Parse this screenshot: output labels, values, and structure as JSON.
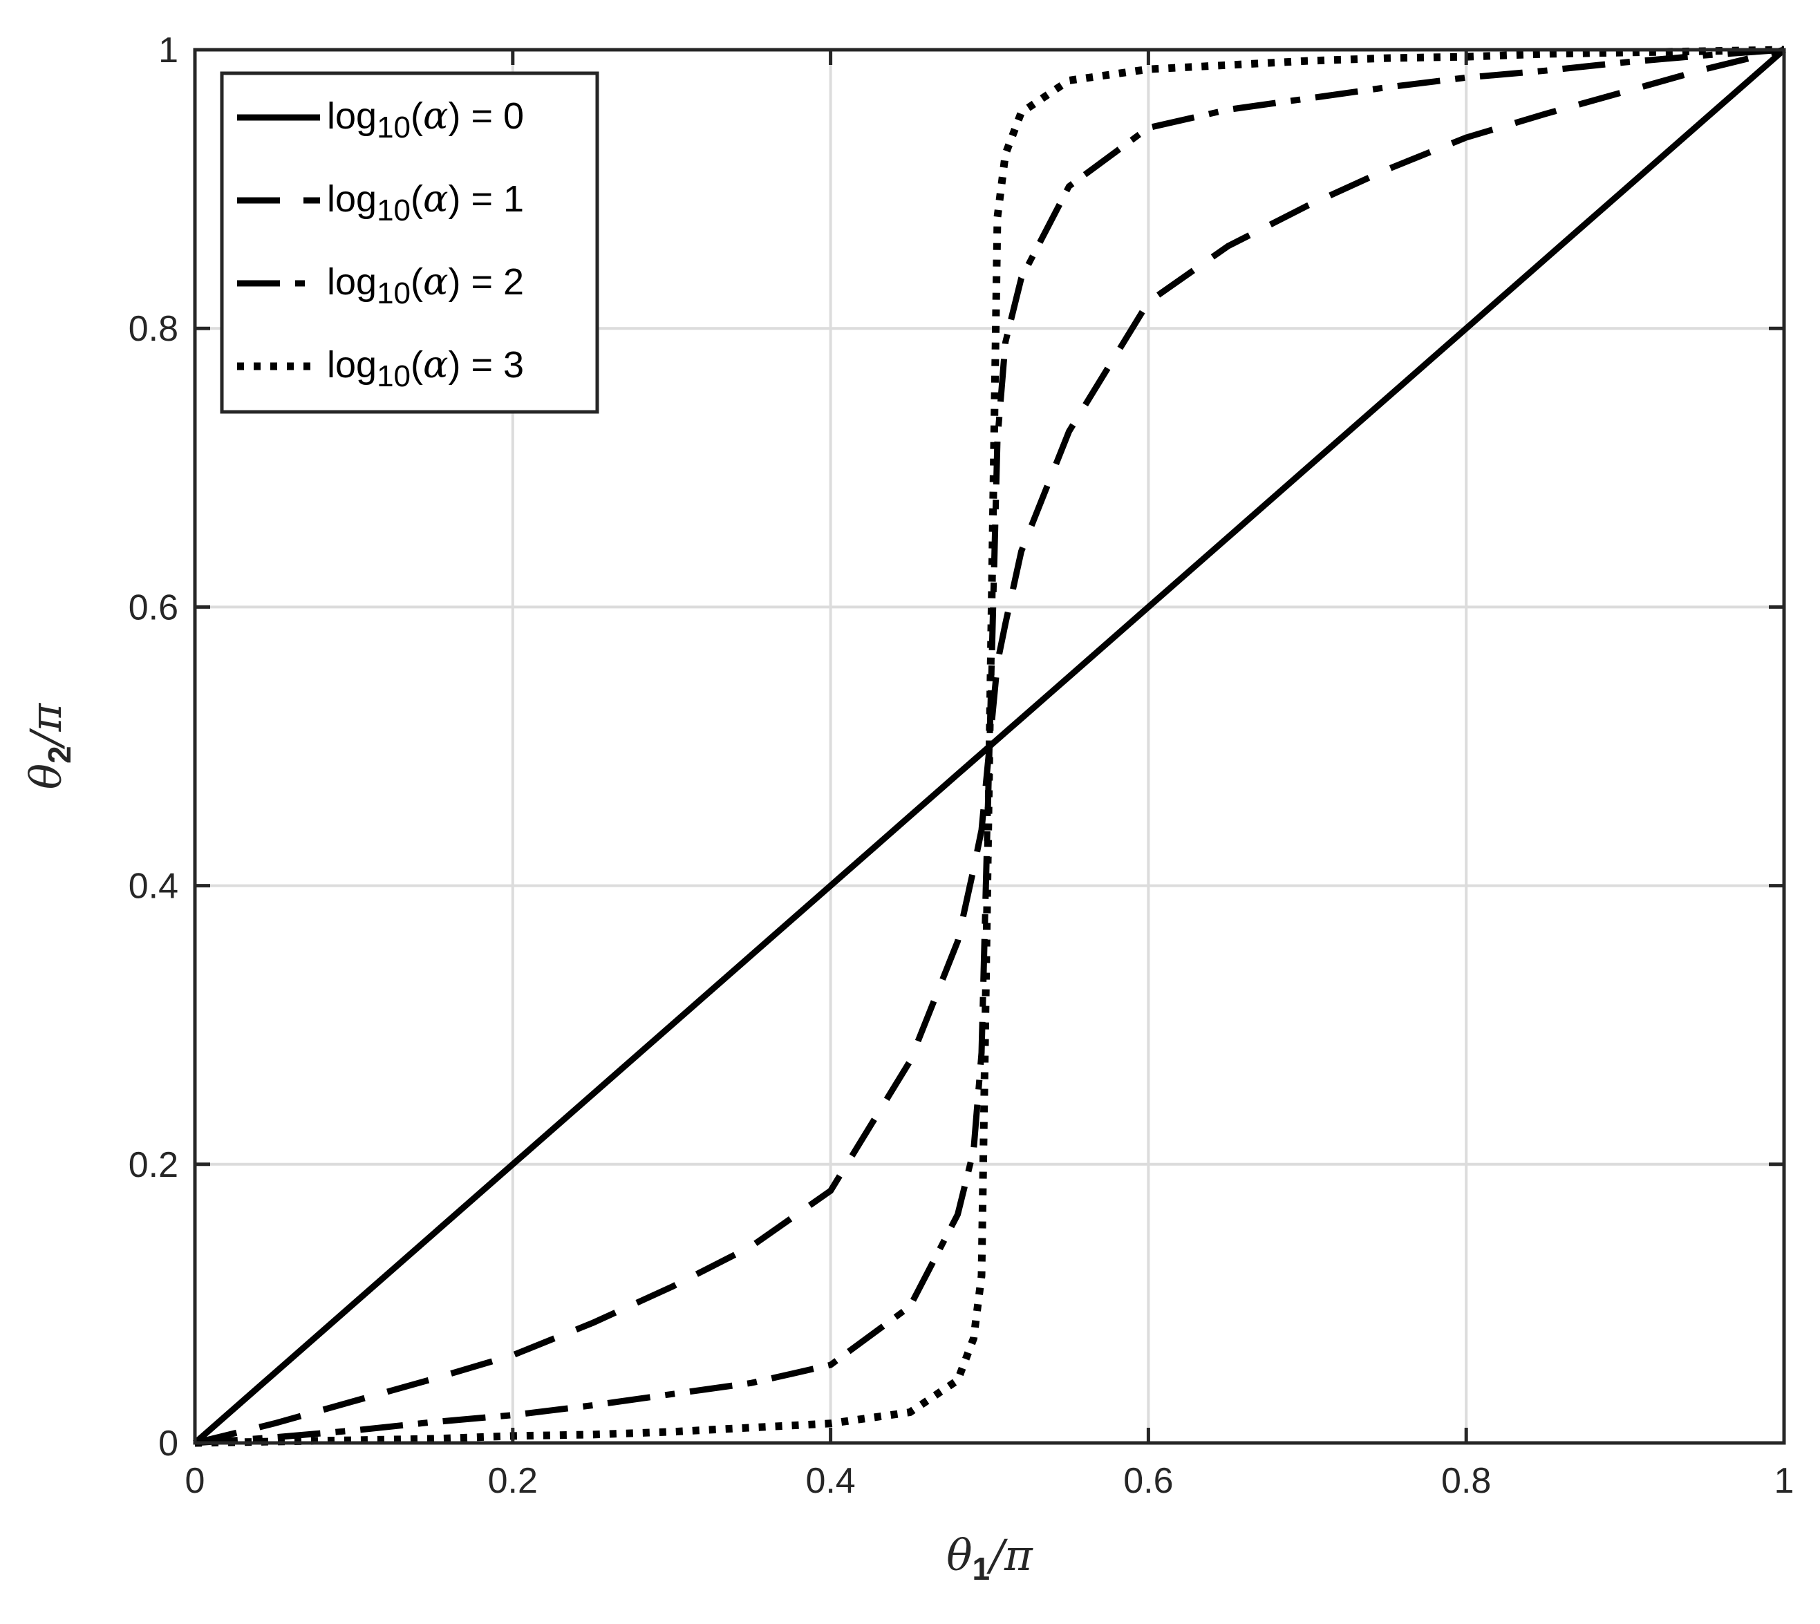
{
  "chart_data": {
    "type": "line",
    "xlabel": {
      "main": "θ",
      "sub": "1",
      "tail": "/π"
    },
    "ylabel": {
      "main": "θ",
      "sub": "2",
      "tail": "/π"
    },
    "xlim": [
      0,
      1
    ],
    "ylim": [
      0,
      1
    ],
    "grid": true,
    "legend_position": "top-left",
    "x_ticks": [
      0,
      0.2,
      0.4,
      0.6,
      0.8,
      1
    ],
    "y_ticks": [
      0,
      0.2,
      0.4,
      0.6,
      0.8,
      1
    ],
    "x_tick_labels": [
      "0",
      "0.2",
      "0.4",
      "0.6",
      "0.8",
      "1"
    ],
    "y_tick_labels": [
      "0",
      "0.2",
      "0.4",
      "0.6",
      "0.8",
      "1"
    ],
    "colors": {
      "axes": "#262626",
      "grid": "#dcdcdc",
      "line": "#000000"
    },
    "x": [
      0,
      0.05,
      0.1,
      0.15,
      0.2,
      0.25,
      0.3,
      0.35,
      0.4,
      0.45,
      0.48,
      0.49,
      0.495,
      0.5,
      0.505,
      0.51,
      0.52,
      0.55,
      0.6,
      0.65,
      0.7,
      0.75,
      0.8,
      0.85,
      0.9,
      0.95,
      1
    ],
    "series": [
      {
        "name": "log₁₀(α) = 0",
        "legend": {
          "prefix": "log",
          "sub": "10",
          "alpha": "α",
          "suffix": ") = 0"
        },
        "dash": "solid",
        "values": [
          0,
          0.05,
          0.1,
          0.15,
          0.2,
          0.25,
          0.3,
          0.35,
          0.4,
          0.45,
          0.48,
          0.49,
          0.495,
          0.5,
          0.505,
          0.51,
          0.52,
          0.55,
          0.6,
          0.65,
          0.7,
          0.75,
          0.8,
          0.85,
          0.9,
          0.95,
          1
        ]
      },
      {
        "name": "log₁₀(α) = 1",
        "legend": {
          "prefix": "log",
          "sub": "10",
          "alpha": "α",
          "suffix": ") = 1"
        },
        "dash": "dashed",
        "values": [
          0,
          0.014,
          0.03,
          0.046,
          0.063,
          0.086,
          0.112,
          0.141,
          0.181,
          0.274,
          0.36,
          0.412,
          0.44,
          0.5,
          0.56,
          0.588,
          0.64,
          0.726,
          0.819,
          0.859,
          0.888,
          0.914,
          0.937,
          0.954,
          0.97,
          0.986,
          1
        ]
      },
      {
        "name": "log₁₀(α) = 2",
        "legend": {
          "prefix": "log",
          "sub": "10",
          "alpha": "α",
          "suffix": ") = 2"
        },
        "dash": "dashdot",
        "values": [
          0,
          0.004,
          0.009,
          0.015,
          0.02,
          0.027,
          0.035,
          0.043,
          0.056,
          0.098,
          0.164,
          0.21,
          0.28,
          0.5,
          0.72,
          0.79,
          0.836,
          0.902,
          0.944,
          0.957,
          0.965,
          0.973,
          0.98,
          0.985,
          0.991,
          0.996,
          1
        ]
      },
      {
        "name": "log₁₀(α) = 3",
        "legend": {
          "prefix": "log",
          "sub": "10",
          "alpha": "α",
          "suffix": ") = 3"
        },
        "dash": "dotted",
        "values": [
          0,
          0.001,
          0.002,
          0.003,
          0.005,
          0.006,
          0.008,
          0.011,
          0.014,
          0.022,
          0.045,
          0.075,
          0.12,
          0.5,
          0.88,
          0.925,
          0.955,
          0.978,
          0.986,
          0.989,
          0.992,
          0.994,
          0.995,
          0.997,
          0.998,
          0.999,
          1
        ]
      }
    ]
  }
}
